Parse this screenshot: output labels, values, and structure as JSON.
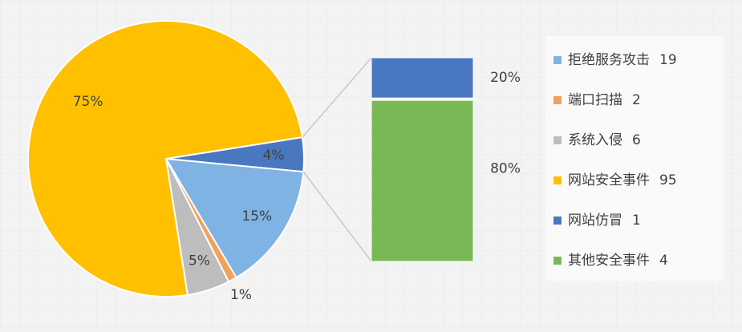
{
  "chart_data": {
    "type": "pie-of-bar",
    "categories": [
      "拒绝服务攻击",
      "端口扫描",
      "系统入侵",
      "网站安全事件",
      "网站仿冒",
      "其他安全事件"
    ],
    "values": [
      19,
      2,
      6,
      95,
      1,
      4
    ],
    "colors": [
      "#7fb3e3",
      "#f0a15c",
      "#bdbdbd",
      "#ffc000",
      "#4a78c0",
      "#7ab856"
    ],
    "pie": {
      "percents": [
        4,
        15,
        1,
        5,
        75
      ],
      "value_labels": [
        "4%",
        "15%",
        "1%",
        "5%",
        "75%"
      ]
    },
    "bar": {
      "percents": [
        20,
        80
      ],
      "value_labels": [
        "20%",
        "80%"
      ]
    }
  }
}
